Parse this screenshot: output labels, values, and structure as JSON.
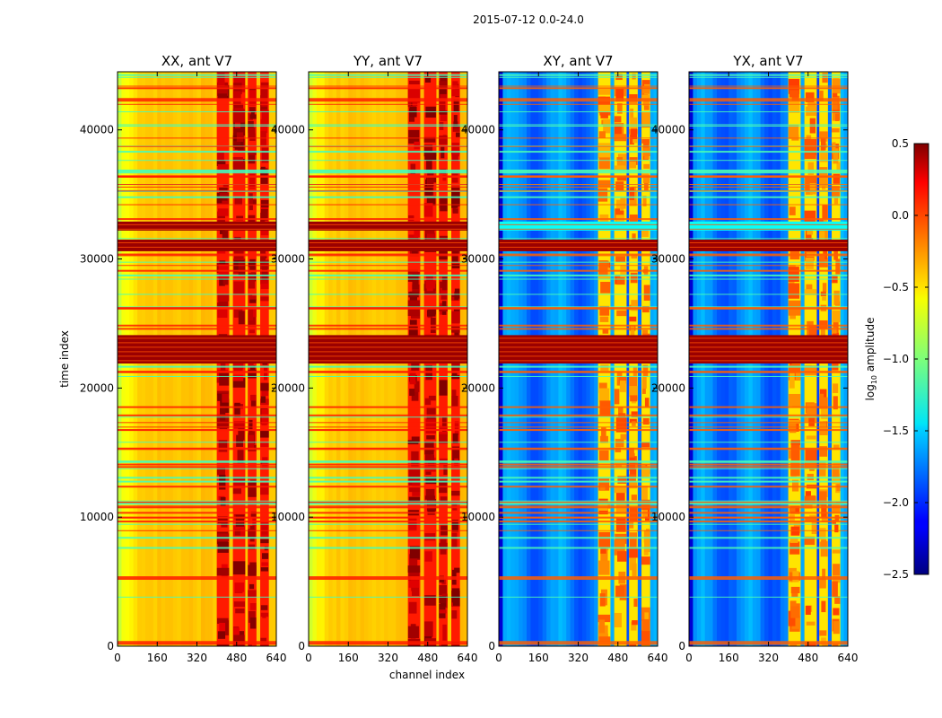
{
  "figure": {
    "suptitle": "2015-07-12 0.0-24.0",
    "xlabel": "channel index",
    "ylabel": "time index"
  },
  "chart_data": {
    "type": "heatmap",
    "x_range": [
      0,
      640
    ],
    "y_range": [
      0,
      44500
    ],
    "x_ticks": [
      "0",
      "160",
      "320",
      "480",
      "640"
    ],
    "x_tick_values": [
      0,
      160,
      320,
      480,
      640
    ],
    "y_ticks": [
      "0",
      "10000",
      "20000",
      "30000",
      "40000"
    ],
    "y_tick_values": [
      0,
      10000,
      20000,
      30000,
      40000
    ],
    "panels": [
      {
        "title": "XX, ant V7",
        "pol": "auto",
        "base": -0.45
      },
      {
        "title": "YY, ant V7",
        "pol": "auto",
        "base": -0.45
      },
      {
        "title": "XY, ant V7",
        "pol": "cross",
        "base": -1.75
      },
      {
        "title": "YX, ant V7",
        "pol": "cross",
        "base": -1.75
      }
    ],
    "rfi_bands_channels": [
      [
        400,
        450
      ],
      [
        465,
        515
      ],
      [
        525,
        560
      ],
      [
        575,
        610
      ]
    ],
    "flagged_time_ranges": [
      [
        21900,
        24100
      ],
      [
        30600,
        31500
      ],
      [
        32200,
        32900
      ]
    ],
    "colorbar": {
      "label": "log10 amplitude",
      "label_main": "log",
      "label_sub": "10",
      "label_rest": " amplitude",
      "range": [
        -2.5,
        0.5
      ],
      "ticks": [
        "0.5",
        "0.0",
        "−0.5",
        "−1.0",
        "−1.5",
        "−2.0",
        "−2.5"
      ],
      "tick_values": [
        0.5,
        0.0,
        -0.5,
        -1.0,
        -1.5,
        -2.0,
        -2.5
      ]
    }
  }
}
